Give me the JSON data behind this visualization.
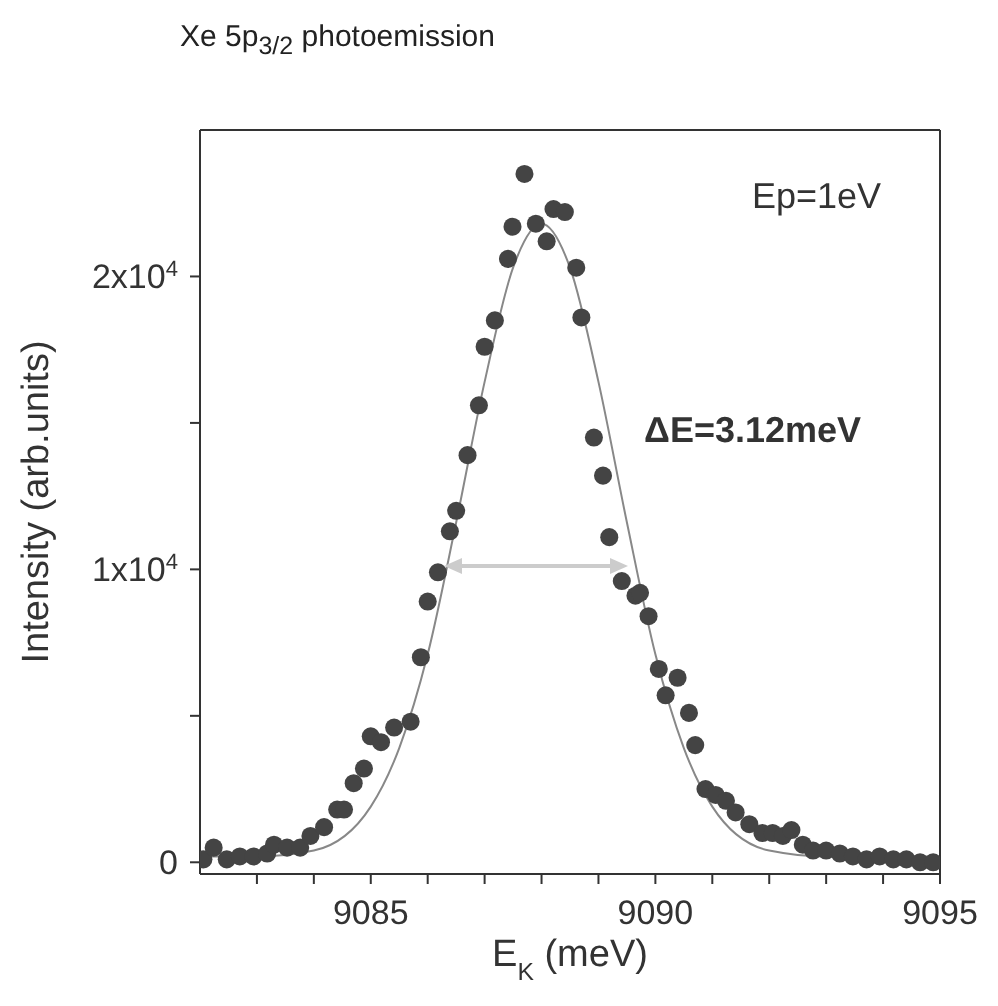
{
  "chart_data": {
    "type": "scatter",
    "title": "Xe 5p$_{3/2}$ photoemission",
    "xlabel": "E$_{K}$ (meV)",
    "ylabel": "Intensity (arb.units)",
    "annotations": [
      "Ep=1eV",
      "ΔE=3.12meV"
    ],
    "xlim": [
      9082,
      9095
    ],
    "xticks": [
      {
        "value": 9083,
        "label": null
      },
      {
        "value": 9084,
        "label": null
      },
      9085,
      {
        "value": 9086,
        "label": null
      },
      {
        "value": 9087,
        "label": null
      },
      {
        "value": 9088,
        "label": null
      },
      {
        "value": 9089,
        "label": null
      },
      9090,
      {
        "value": 9091,
        "label": null
      },
      {
        "value": 9092,
        "label": null
      },
      {
        "value": 9093,
        "label": null
      },
      {
        "value": 9094,
        "label": null
      },
      9095
    ],
    "ylim": [
      -400,
      25000
    ],
    "yticks": [
      {
        "value": 0,
        "label": "0"
      },
      {
        "value": 5000,
        "label": null
      },
      {
        "value": 10000,
        "label": "1x10$^{4}$"
      },
      {
        "value": 15000,
        "label": null
      },
      {
        "value": 20000,
        "label": "2x10$^{4}$"
      }
    ],
    "grid": false,
    "marker": "circle",
    "series": [
      {
        "color": "#444444",
        "x": [
          9082.06,
          9082.24,
          9082.47,
          9082.7,
          9082.94,
          9083.18,
          9083.3,
          9083.53,
          9083.76,
          9083.94,
          9084.18,
          9084.41,
          9084.53,
          9084.7,
          9084.88,
          9085,
          9085.18,
          9085.41,
          9085.7,
          9085.88,
          9086,
          9086.18,
          9086.39,
          9086.5,
          9086.7,
          9086.9,
          9087,
          9087.18,
          9087.41,
          9087.49,
          9087.7,
          9087.9,
          9088.09,
          9088.21,
          9088.41,
          9088.61,
          9088.7,
          9088.92,
          9089.08,
          9089.19,
          9089.41,
          9089.65,
          9089.73,
          9089.88,
          9090.06,
          9090.18,
          9090.39,
          9090.59,
          9090.7,
          9090.88,
          9091.06,
          9091.24,
          9091.41,
          9091.65,
          9091.88,
          9092.06,
          9092.24,
          9092.39,
          9092.59,
          9092.77,
          9093,
          9093.24,
          9093.47,
          9093.71,
          9093.94,
          9094.18,
          9094.41,
          9094.65,
          9094.88
        ],
        "values": [
          100,
          500,
          100,
          200,
          200,
          300,
          600,
          500,
          500,
          900,
          1200,
          1800,
          1800,
          2700,
          3200,
          4300,
          4100,
          4600,
          4800,
          7000,
          8900,
          9900,
          11300,
          12000,
          13900,
          15600,
          17600,
          18500,
          20600,
          21700,
          23500,
          21800,
          21200,
          22300,
          22200,
          20300,
          18600,
          14500,
          13200,
          11100,
          9600,
          9100,
          9200,
          8400,
          6600,
          5700,
          6300,
          5100,
          4000,
          2500,
          2300,
          2100,
          1700,
          1300,
          1000,
          1000,
          900,
          1100,
          600,
          400,
          400,
          300,
          200,
          100,
          200,
          100,
          100,
          0,
          0
        ]
      },
      {
        "type": "line",
        "color": "#888888",
        "marker": "none",
        "x": [
          9082,
          9083,
          9084,
          9085,
          9085.5,
          9086,
          9086.5,
          9087,
          9087.5,
          9088,
          9088.5,
          9089,
          9089.5,
          9090,
          9090.5,
          9091,
          9092,
          9093,
          9095
        ],
        "values": [
          200,
          200,
          400,
          1900,
          3900,
          7100,
          11600,
          16400,
          20300,
          21800,
          20300,
          16400,
          11600,
          7100,
          3900,
          1900,
          400,
          200,
          200
        ]
      }
    ]
  }
}
